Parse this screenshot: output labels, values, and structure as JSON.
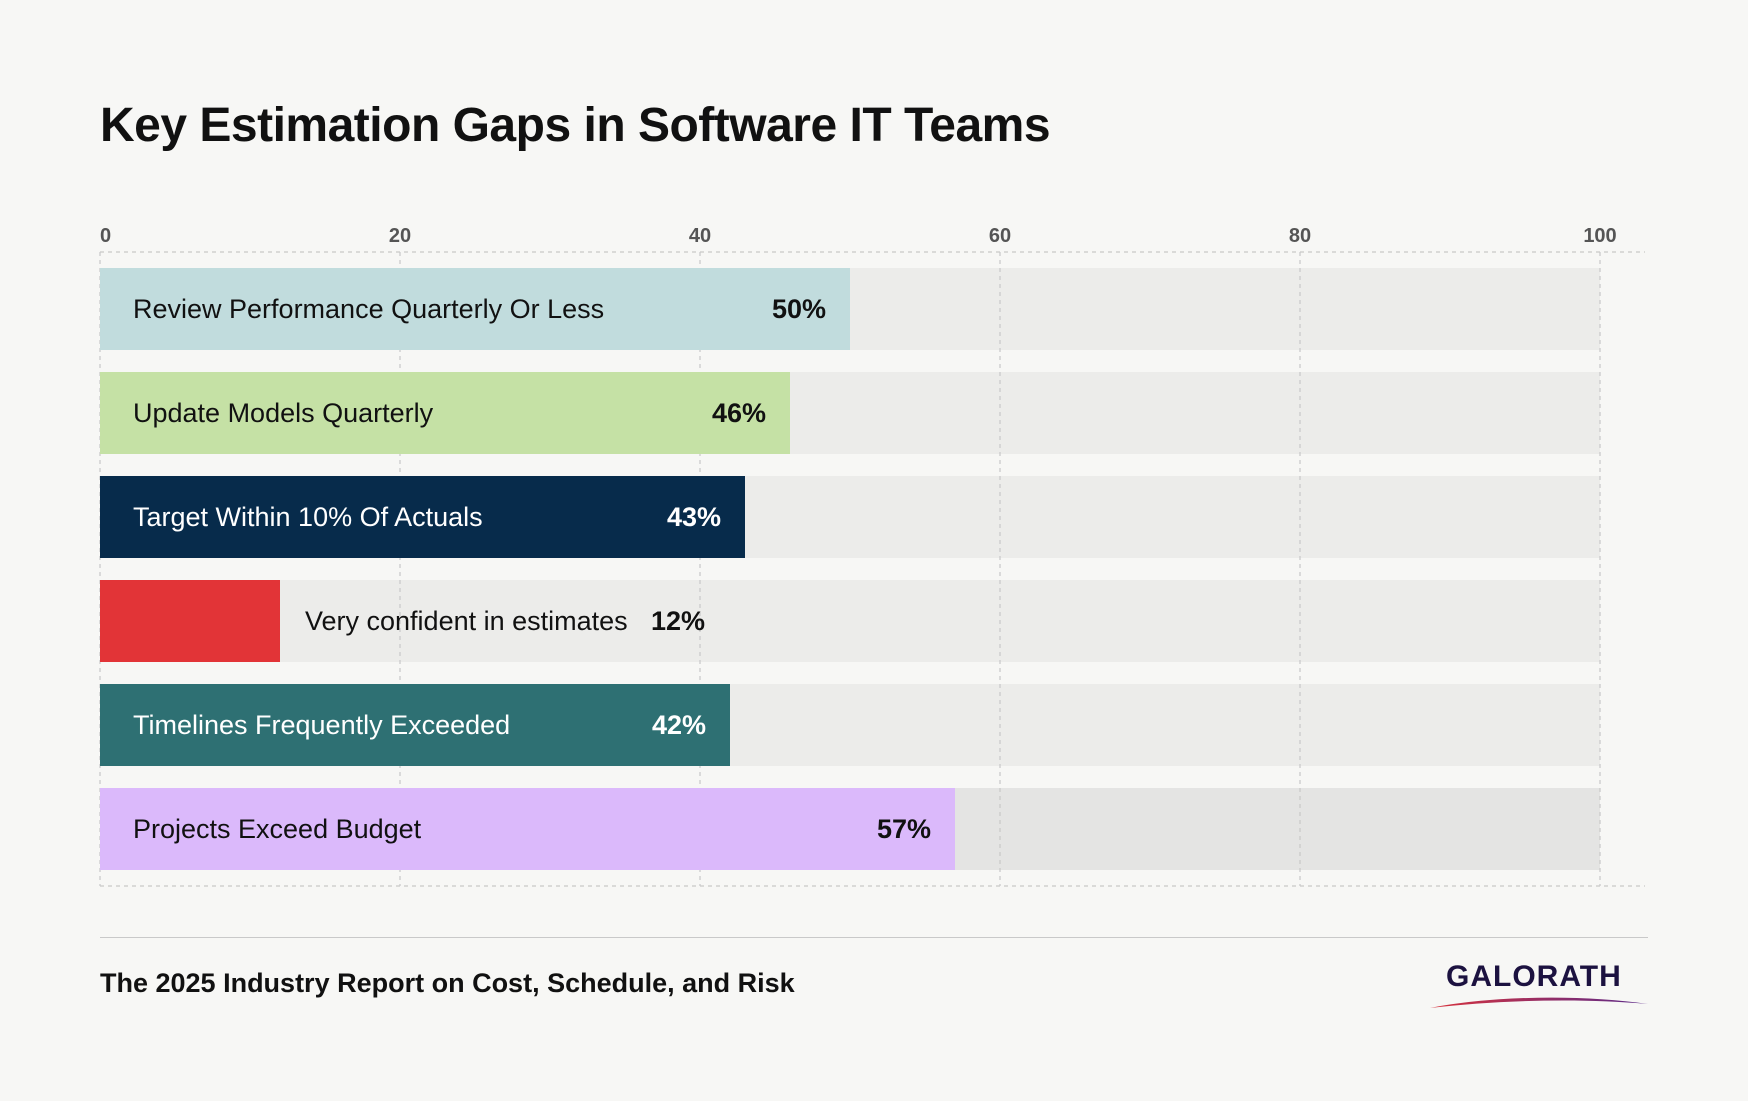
{
  "title": "Key Estimation Gaps in Software IT Teams",
  "footer": {
    "source": "The 2025 Industry Report on Cost, Schedule, and Risk",
    "logo_text": "GALORATH"
  },
  "colors": {
    "background": "#f7f7f5",
    "track": "#ececea",
    "track_last": "#e4e4e3",
    "logo": "#1c1240",
    "logo_swoosh_start": "#d8323c",
    "logo_swoosh_end": "#5a2a8a"
  },
  "chart_data": {
    "type": "bar",
    "orientation": "horizontal",
    "xlim": [
      0,
      100
    ],
    "ticks": [
      0,
      20,
      40,
      60,
      80,
      100
    ],
    "grid": true,
    "categories": [
      "Review Performance Quarterly Or Less",
      "Update Models Quarterly",
      "Target Within 10% Of Actuals",
      "Very confident in estimates",
      "Timelines Frequently Exceeded",
      "Projects Exceed Budget"
    ],
    "values": [
      50,
      46,
      43,
      12,
      42,
      57
    ],
    "value_labels": [
      "50%",
      "46%",
      "43%",
      "12%",
      "42%",
      "57%"
    ],
    "bar_colors": [
      "#c1dcdd",
      "#c5e1a5",
      "#072b4b",
      "#e23437",
      "#2e7073",
      "#dbb9fb"
    ],
    "label_colors": [
      "#111111",
      "#111111",
      "#ffffff",
      "#111111",
      "#ffffff",
      "#111111"
    ]
  }
}
